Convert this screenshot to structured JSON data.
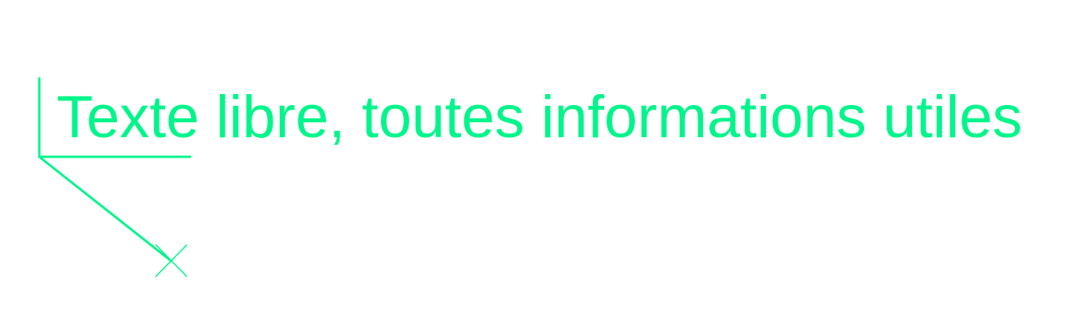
{
  "annotation": {
    "text": "Texte libre, toutes informations utiles"
  },
  "colors": {
    "background": "#ffffff",
    "stroke": "#00f58a"
  },
  "leader": {
    "point_marker": "cross-marker"
  }
}
